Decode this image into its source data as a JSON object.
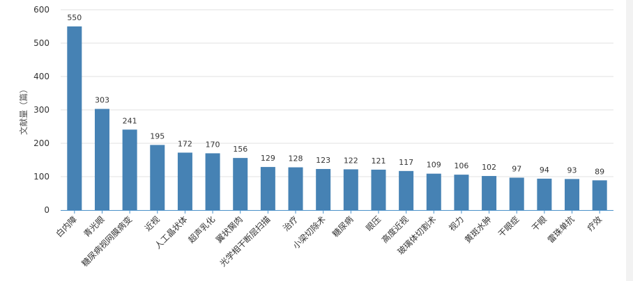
{
  "chart_data": {
    "type": "bar",
    "title": "",
    "xlabel": "",
    "ylabel": "文献量（篇）",
    "ylim": [
      0,
      600
    ],
    "yticks": [
      0,
      100,
      200,
      300,
      400,
      500,
      600
    ],
    "grid": true,
    "bar_color": "#4682b4",
    "categories": [
      "白内障",
      "青光眼",
      "糖尿病视网膜病变",
      "近视",
      "人工晶状体",
      "超声乳化",
      "翼状胬肉",
      "光学相干断层扫描",
      "治疗",
      "小梁切除术",
      "糖尿病",
      "眼压",
      "高度近视",
      "玻璃体切割术",
      "视力",
      "黄斑水肿",
      "干眼症",
      "干眼",
      "雷珠单抗",
      "疗效"
    ],
    "values": [
      550,
      303,
      241,
      195,
      172,
      170,
      156,
      129,
      128,
      123,
      122,
      121,
      117,
      109,
      106,
      102,
      97,
      94,
      93,
      89
    ]
  }
}
